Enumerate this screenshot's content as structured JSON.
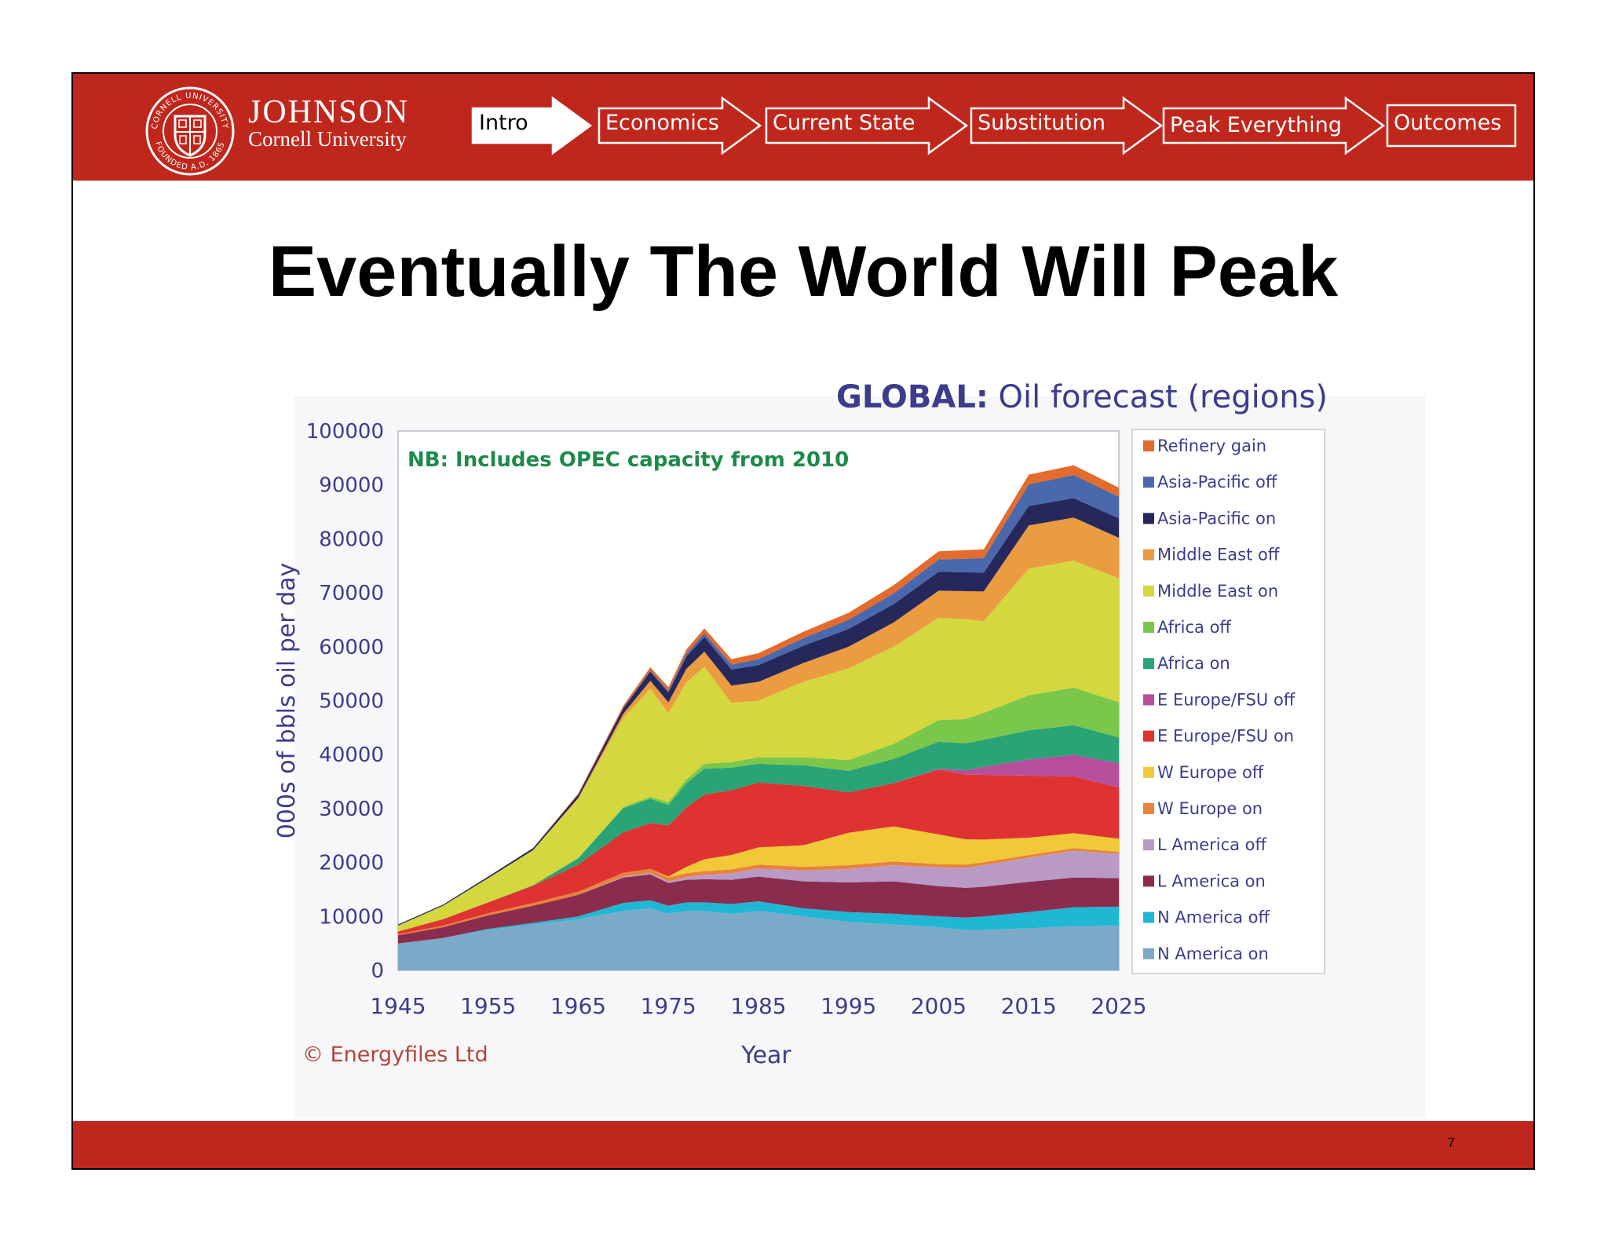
{
  "slide": {
    "brand_name": "JOHNSON",
    "brand_sub": "Cornell University",
    "title": "Eventually The World Will Peak",
    "page_number": "7",
    "seal_text_top": "CORNELL UNIVERSITY",
    "seal_text_bottom": "FOUNDED A.D. 1865",
    "colors": {
      "band": "#c0271c",
      "nav_active_fill": "#ffffff",
      "nav_outline": "#ffffff"
    }
  },
  "nav": {
    "steps": [
      {
        "label": "Intro",
        "active": true
      },
      {
        "label": "Economics",
        "active": false
      },
      {
        "label": "Current State",
        "active": false
      },
      {
        "label": "Substitution",
        "active": false
      },
      {
        "label": "Peak Everything",
        "active": false
      },
      {
        "label": "Outcomes",
        "active": false
      }
    ]
  },
  "chart_data": {
    "type": "area",
    "stacked": true,
    "title_bold": "GLOBAL:",
    "title_rest": " Oil forecast (regions)",
    "annotation": "NB: Includes OPEC capacity from 2010",
    "source": "© Energyfiles Ltd",
    "xlabel": "Year",
    "ylabel": "000s of bbls oil per day",
    "xlim": [
      1945,
      2025
    ],
    "ylim": [
      0,
      100000
    ],
    "xticks": [
      "1945",
      "1955",
      "1965",
      "1975",
      "1985",
      "1995",
      "2005",
      "2015",
      "2025"
    ],
    "yticks": [
      "0",
      "10000",
      "20000",
      "30000",
      "40000",
      "50000",
      "60000",
      "70000",
      "80000",
      "90000",
      "100000"
    ],
    "grid": false,
    "legend_position": "right",
    "x": [
      1945,
      1950,
      1955,
      1960,
      1965,
      1970,
      1973,
      1975,
      1977,
      1979,
      1982,
      1985,
      1990,
      1995,
      2000,
      2005,
      2008,
      2010,
      2015,
      2020,
      2025
    ],
    "series": [
      {
        "name": "N America on",
        "color": "#7da9c9",
        "values": [
          5000,
          6000,
          7500,
          8500,
          9500,
          11000,
          11500,
          10500,
          11000,
          11000,
          10500,
          11000,
          10000,
          9000,
          8500,
          8000,
          7500,
          7500,
          7800,
          8200,
          8300
        ]
      },
      {
        "name": "N America off",
        "color": "#1fb7d4",
        "values": [
          0,
          0,
          200,
          300,
          500,
          1500,
          1500,
          1500,
          1600,
          1600,
          1800,
          1800,
          1500,
          1800,
          2000,
          2000,
          2300,
          2500,
          3000,
          3500,
          3500
        ]
      },
      {
        "name": "L America on",
        "color": "#8a2c4e",
        "values": [
          1500,
          2000,
          2500,
          3200,
          4000,
          4700,
          4800,
          4200,
          4200,
          4300,
          4500,
          4600,
          5000,
          5500,
          6000,
          5600,
          5500,
          5500,
          5600,
          5500,
          5300
        ]
      },
      {
        "name": "L America off",
        "color": "#b99ac6",
        "values": [
          0,
          0,
          0,
          0,
          0,
          200,
          300,
          300,
          500,
          800,
          1200,
          1500,
          2000,
          2500,
          3000,
          3500,
          3700,
          4000,
          4500,
          5000,
          4500
        ]
      },
      {
        "name": "W Europe on",
        "color": "#e8823a",
        "values": [
          200,
          300,
          400,
          500,
          600,
          700,
          700,
          700,
          700,
          700,
          700,
          700,
          700,
          700,
          700,
          600,
          600,
          550,
          500,
          450,
          400
        ]
      },
      {
        "name": "W Europe off",
        "color": "#f0c838",
        "values": [
          0,
          0,
          0,
          0,
          0,
          0,
          0,
          200,
          1200,
          2200,
          2700,
          3200,
          4000,
          6000,
          6500,
          5500,
          4700,
          4200,
          3200,
          2800,
          2400
        ]
      },
      {
        "name": "E Europe/FSU on",
        "color": "#de3330",
        "values": [
          500,
          1200,
          2000,
          3200,
          5000,
          7500,
          8500,
          9500,
          11000,
          12000,
          12000,
          12000,
          11000,
          7500,
          8000,
          12000,
          12000,
          12000,
          11500,
          10500,
          9500
        ]
      },
      {
        "name": "E Europe/FSU off",
        "color": "#b84f9c",
        "values": [
          0,
          0,
          0,
          0,
          0,
          0,
          0,
          0,
          0,
          0,
          0,
          0,
          0,
          0,
          0,
          200,
          800,
          1500,
          3000,
          4000,
          4500
        ]
      },
      {
        "name": "Africa on",
        "color": "#2aa377",
        "values": [
          0,
          0,
          0,
          100,
          1200,
          4500,
          4500,
          3800,
          4500,
          4800,
          4200,
          3500,
          3800,
          4000,
          4500,
          5000,
          5000,
          5000,
          5400,
          5500,
          4800
        ]
      },
      {
        "name": "Africa off",
        "color": "#7ac74b",
        "values": [
          0,
          0,
          0,
          0,
          0,
          200,
          400,
          500,
          700,
          900,
          1000,
          1200,
          1500,
          2000,
          2800,
          4000,
          4500,
          5000,
          6500,
          7000,
          6500
        ]
      },
      {
        "name": "Middle East on",
        "color": "#d4d83e",
        "values": [
          1100,
          2500,
          4500,
          6500,
          11000,
          16500,
          20000,
          16500,
          18000,
          18000,
          11000,
          10500,
          14000,
          17000,
          18000,
          19000,
          18500,
          17000,
          23500,
          23500,
          23000
        ]
      },
      {
        "name": "Middle East off",
        "color": "#eb9b40",
        "values": [
          0,
          0,
          0,
          0,
          200,
          800,
          1500,
          2000,
          2500,
          2800,
          3200,
          3500,
          3500,
          4000,
          4500,
          5000,
          5200,
          5500,
          8000,
          8000,
          7500
        ]
      },
      {
        "name": "Asia-Pacific on",
        "color": "#26275b",
        "values": [
          200,
          200,
          300,
          400,
          600,
          1000,
          1700,
          1800,
          2300,
          2700,
          3000,
          3100,
          3200,
          3300,
          3400,
          3500,
          3500,
          3500,
          3600,
          3600,
          3600
        ]
      },
      {
        "name": "Asia-Pacific off",
        "color": "#4a68ac",
        "values": [
          0,
          0,
          0,
          0,
          0,
          100,
          200,
          300,
          500,
          700,
          900,
          1100,
          1400,
          1700,
          2000,
          2300,
          2500,
          2700,
          4000,
          4300,
          4000
        ]
      },
      {
        "name": "Refinery gain",
        "color": "#e36b2c",
        "values": [
          0,
          0,
          0,
          0,
          200,
          400,
          600,
          700,
          800,
          900,
          1000,
          1100,
          1200,
          1300,
          1500,
          1500,
          1600,
          1600,
          1800,
          1800,
          1700
        ]
      }
    ]
  }
}
